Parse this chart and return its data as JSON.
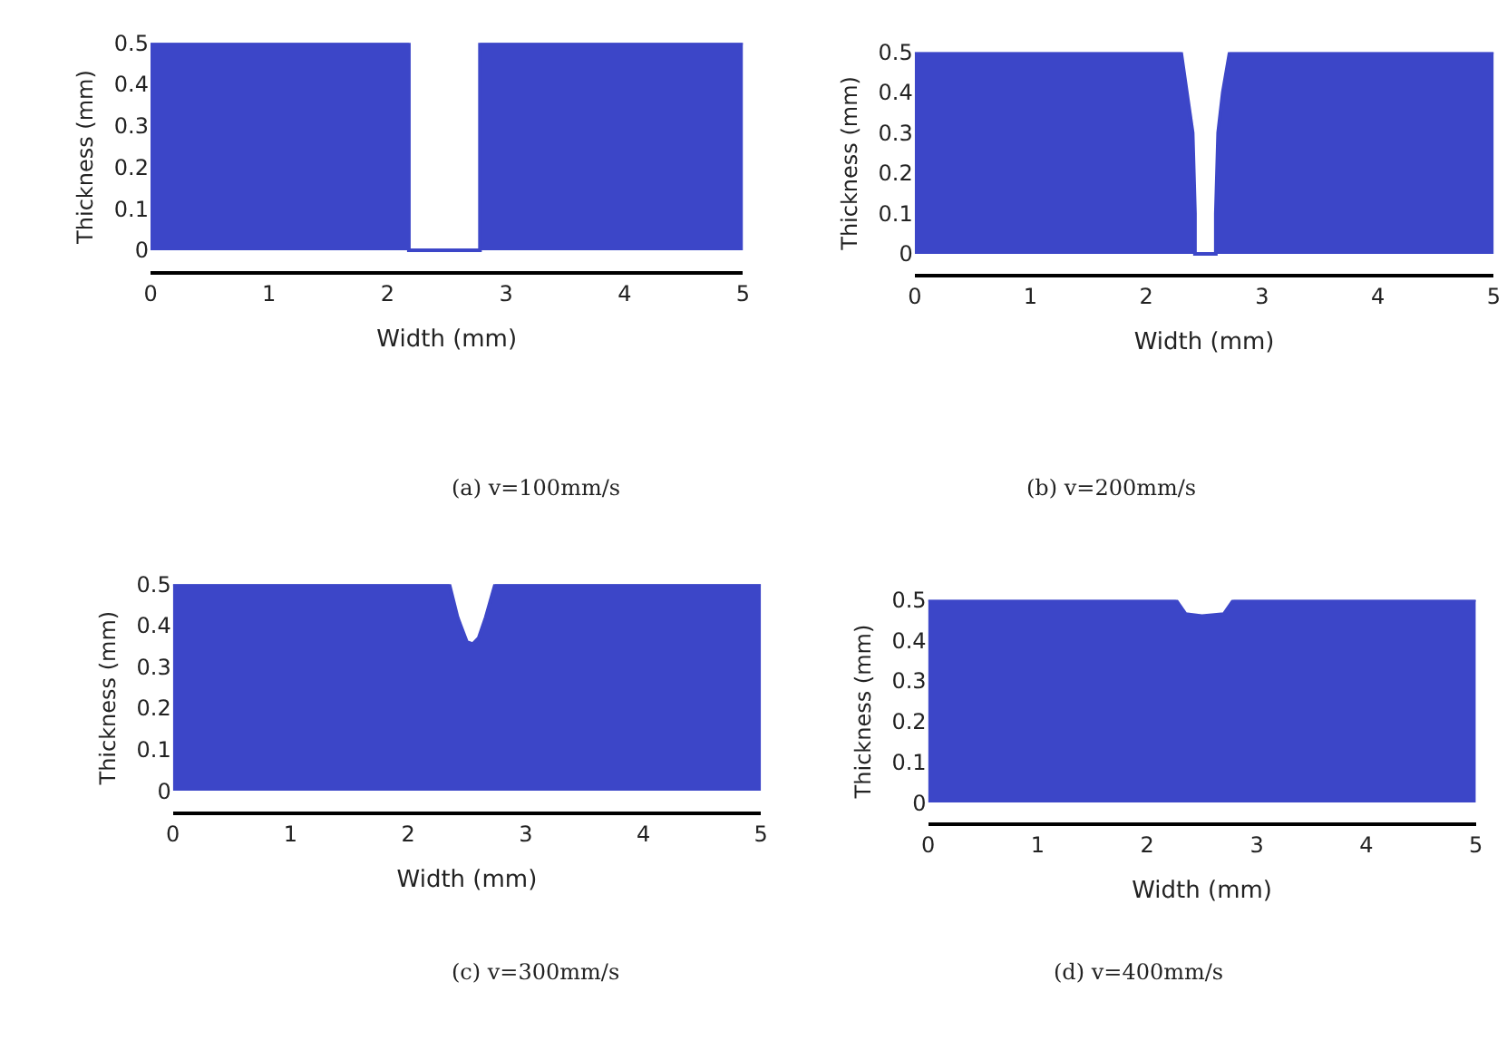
{
  "chart_data": [
    {
      "type": "area",
      "x": [
        0,
        2.18,
        2.18,
        2.78,
        2.78,
        5
      ],
      "series": [
        {
          "color": "#3c46c8",
          "values": [
            0.5,
            0.5,
            0,
            0,
            0.5,
            0.5
          ]
        }
      ],
      "xlabel": "Width (mm)",
      "ylabel": "Thickness (mm)",
      "xlim": [
        0,
        5
      ],
      "xticks": [
        0,
        1,
        2,
        3,
        4,
        5
      ],
      "ylim": [
        -0.05,
        0.5
      ],
      "yticks": [
        0,
        0.1,
        0.2,
        0.3,
        0.4,
        0.5
      ],
      "annotations": [
        "(a) v=100mm/s"
      ]
    },
    {
      "type": "area",
      "x": [
        0,
        2.3,
        2.35,
        2.4,
        2.42,
        2.42,
        2.6,
        2.6,
        2.62,
        2.66,
        2.72,
        5
      ],
      "series": [
        {
          "color": "#3c46c8",
          "values": [
            0.5,
            0.5,
            0.4,
            0.3,
            0.1,
            0,
            0,
            0.1,
            0.3,
            0.4,
            0.5,
            0.5
          ]
        }
      ],
      "xlabel": "Width (mm)",
      "ylabel": "Thickness (mm)",
      "xlim": [
        0,
        5
      ],
      "xticks": [
        0,
        1,
        2,
        3,
        4,
        5
      ],
      "ylim": [
        -0.05,
        0.5
      ],
      "yticks": [
        0,
        0.1,
        0.2,
        0.3,
        0.4,
        0.5
      ],
      "annotations": [
        "(b) v=200mm/s"
      ]
    },
    {
      "type": "area",
      "x": [
        0,
        2.35,
        2.42,
        2.5,
        2.55,
        2.6,
        2.66,
        2.74,
        5
      ],
      "series": [
        {
          "color": "#3c46c8",
          "values": [
            0.5,
            0.5,
            0.42,
            0.36,
            0.355,
            0.37,
            0.42,
            0.5,
            0.5
          ]
        }
      ],
      "xlabel": "Width (mm)",
      "ylabel": "Thickness (mm)",
      "xlim": [
        0,
        5
      ],
      "xticks": [
        0,
        1,
        2,
        3,
        4,
        5
      ],
      "ylim": [
        -0.05,
        0.5
      ],
      "yticks": [
        0,
        0.1,
        0.2,
        0.3,
        0.4,
        0.5
      ],
      "annotations": [
        "(c) v=300mm/s"
      ]
    },
    {
      "type": "area",
      "x": [
        0,
        2.26,
        2.35,
        2.5,
        2.7,
        2.79,
        5
      ],
      "series": [
        {
          "color": "#3c46c8",
          "values": [
            0.5,
            0.5,
            0.465,
            0.46,
            0.465,
            0.5,
            0.5
          ]
        }
      ],
      "xlabel": "Width (mm)",
      "ylabel": "Thickness (mm)",
      "xlim": [
        0,
        5
      ],
      "xticks": [
        0,
        1,
        2,
        3,
        4,
        5
      ],
      "ylim": [
        -0.05,
        0.5
      ],
      "yticks": [
        0,
        0.1,
        0.2,
        0.3,
        0.4,
        0.5
      ],
      "annotations": [
        "(d) v=400mm/s"
      ]
    }
  ]
}
